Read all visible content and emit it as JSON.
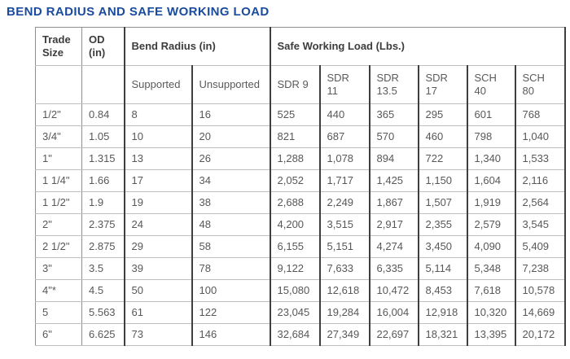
{
  "title": "BEND RADIUS AND SAFE WORKING LOAD",
  "colors": {
    "title_blue": "#1a4b9d",
    "border_dark": "#3f3f3f",
    "border_light": "#bfbfbf",
    "outer_border": "#8f8f8f",
    "header_text": "#3c3c3c",
    "cell_text": "#585858"
  },
  "table": {
    "header": {
      "trade_size": "Trade Size",
      "od": "OD (in)",
      "bend_radius_group": "Bend Radius (in)",
      "swl_group": "Safe Working Load (Lbs.)",
      "sub": [
        "Supported",
        "Unsupported",
        "SDR 9",
        "SDR\n11",
        "SDR\n13.5",
        "SDR\n17",
        "SCH\n40",
        "SCH\n80"
      ]
    },
    "rows": [
      [
        "1/2\"",
        "0.84",
        "8",
        "16",
        "525",
        "440",
        "365",
        "295",
        "601",
        "768"
      ],
      [
        "3/4\"",
        "1.05",
        "10",
        "20",
        "821",
        "687",
        "570",
        "460",
        "798",
        "1,040"
      ],
      [
        "1\"",
        "1.315",
        "13",
        "26",
        "1,288",
        "1,078",
        "894",
        "722",
        "1,340",
        "1,533"
      ],
      [
        "1 1/4\"",
        "1.66",
        "17",
        "34",
        "2,052",
        "1,717",
        "1,425",
        "1,150",
        "1,604",
        "2,116"
      ],
      [
        "1 1/2\"",
        "1.9",
        "19",
        "38",
        "2,688",
        "2,249",
        "1,867",
        "1,507",
        "1,919",
        "2,564"
      ],
      [
        "2\"",
        "2.375",
        "24",
        "48",
        "4,200",
        "3,515",
        "2,917",
        "2,355",
        "2,579",
        "3,545"
      ],
      [
        "2 1/2\"",
        "2.875",
        "29",
        "58",
        "6,155",
        "5,151",
        "4,274",
        "3,450",
        "4,090",
        "5,409"
      ],
      [
        "3\"",
        "3.5",
        "39",
        "78",
        "9,122",
        "7,633",
        "6,335",
        "5,114",
        "5,348",
        "7,238"
      ],
      [
        "4\"*",
        "4.5",
        "50",
        "100",
        "15,080",
        "12,618",
        "10,472",
        "8,453",
        "7,618",
        "10,578"
      ],
      [
        "5",
        "5.563",
        "61",
        "122",
        "23,045",
        "19,284",
        "16,004",
        "12,918",
        "10,320",
        "14,669"
      ],
      [
        "6\"",
        "6.625",
        "73",
        "146",
        "32,684",
        "27,349",
        "22,697",
        "18,321",
        "13,395",
        "20,172"
      ]
    ]
  }
}
